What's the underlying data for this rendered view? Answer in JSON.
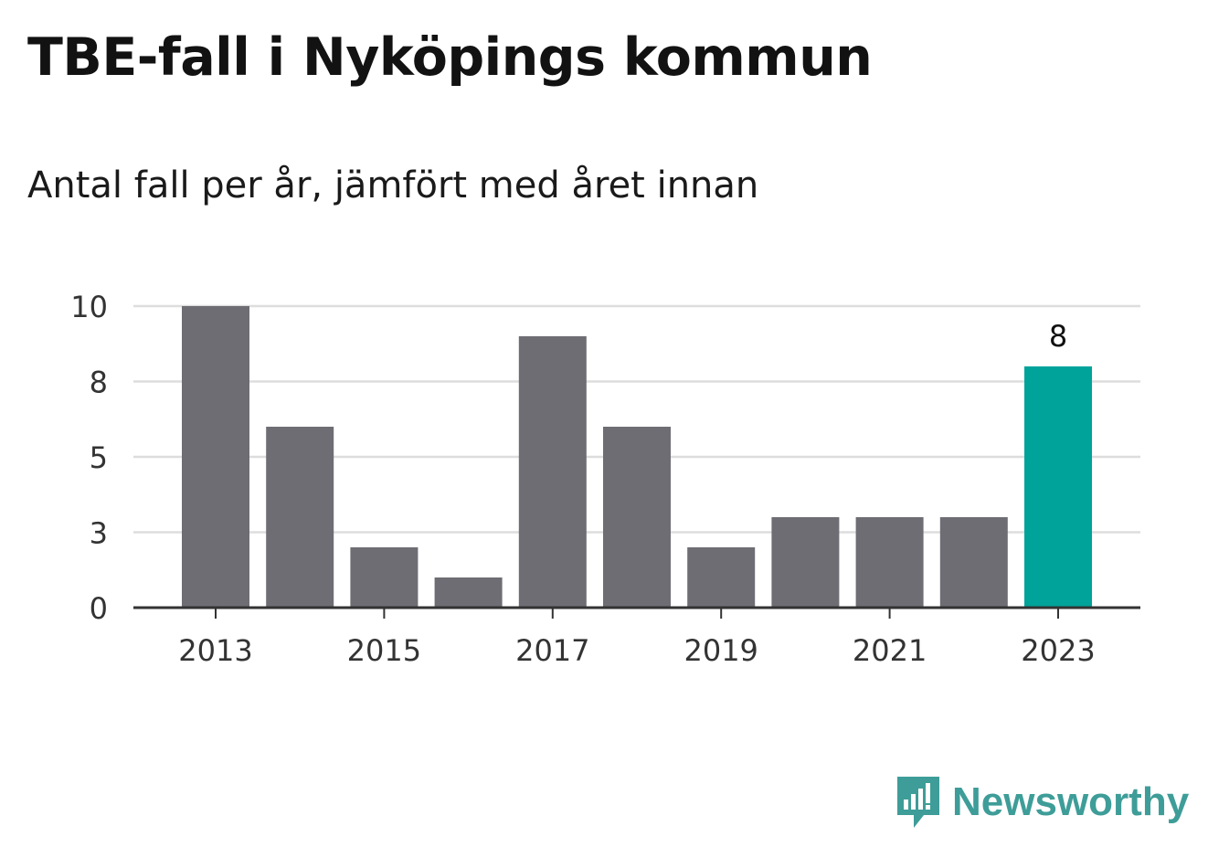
{
  "title": "TBE-fall i Nyköpings kommun",
  "subtitle": "Antal fall per år, jämfört med året innan",
  "brand": {
    "name": "Newsworthy",
    "icon": "newsworthy-logo-icon"
  },
  "colors": {
    "bar": "#6e6d73",
    "highlight": "#00a39a",
    "grid": "#dddddd",
    "axis": "#333333",
    "brand": "#3e9d98"
  },
  "chart_data": {
    "type": "bar",
    "title": "",
    "xlabel": "",
    "ylabel": "",
    "categories": [
      "2013",
      "2014",
      "2015",
      "2016",
      "2017",
      "2018",
      "2019",
      "2020",
      "2021",
      "2022",
      "2023"
    ],
    "values": [
      10,
      6,
      2,
      1,
      9,
      6,
      2,
      3,
      3,
      3,
      8
    ],
    "highlight_category": "2023",
    "data_labels": [
      {
        "category": "2023",
        "text": "8"
      }
    ],
    "xtick_labels": [
      "2013",
      "2015",
      "2017",
      "2019",
      "2021",
      "2023"
    ],
    "yticks": [
      0,
      2.5,
      5,
      7.5,
      10
    ],
    "ytick_labels": [
      "0",
      "3",
      "5",
      "8",
      "10"
    ],
    "ylim": [
      0,
      10
    ],
    "grid": true,
    "legend": "none"
  }
}
